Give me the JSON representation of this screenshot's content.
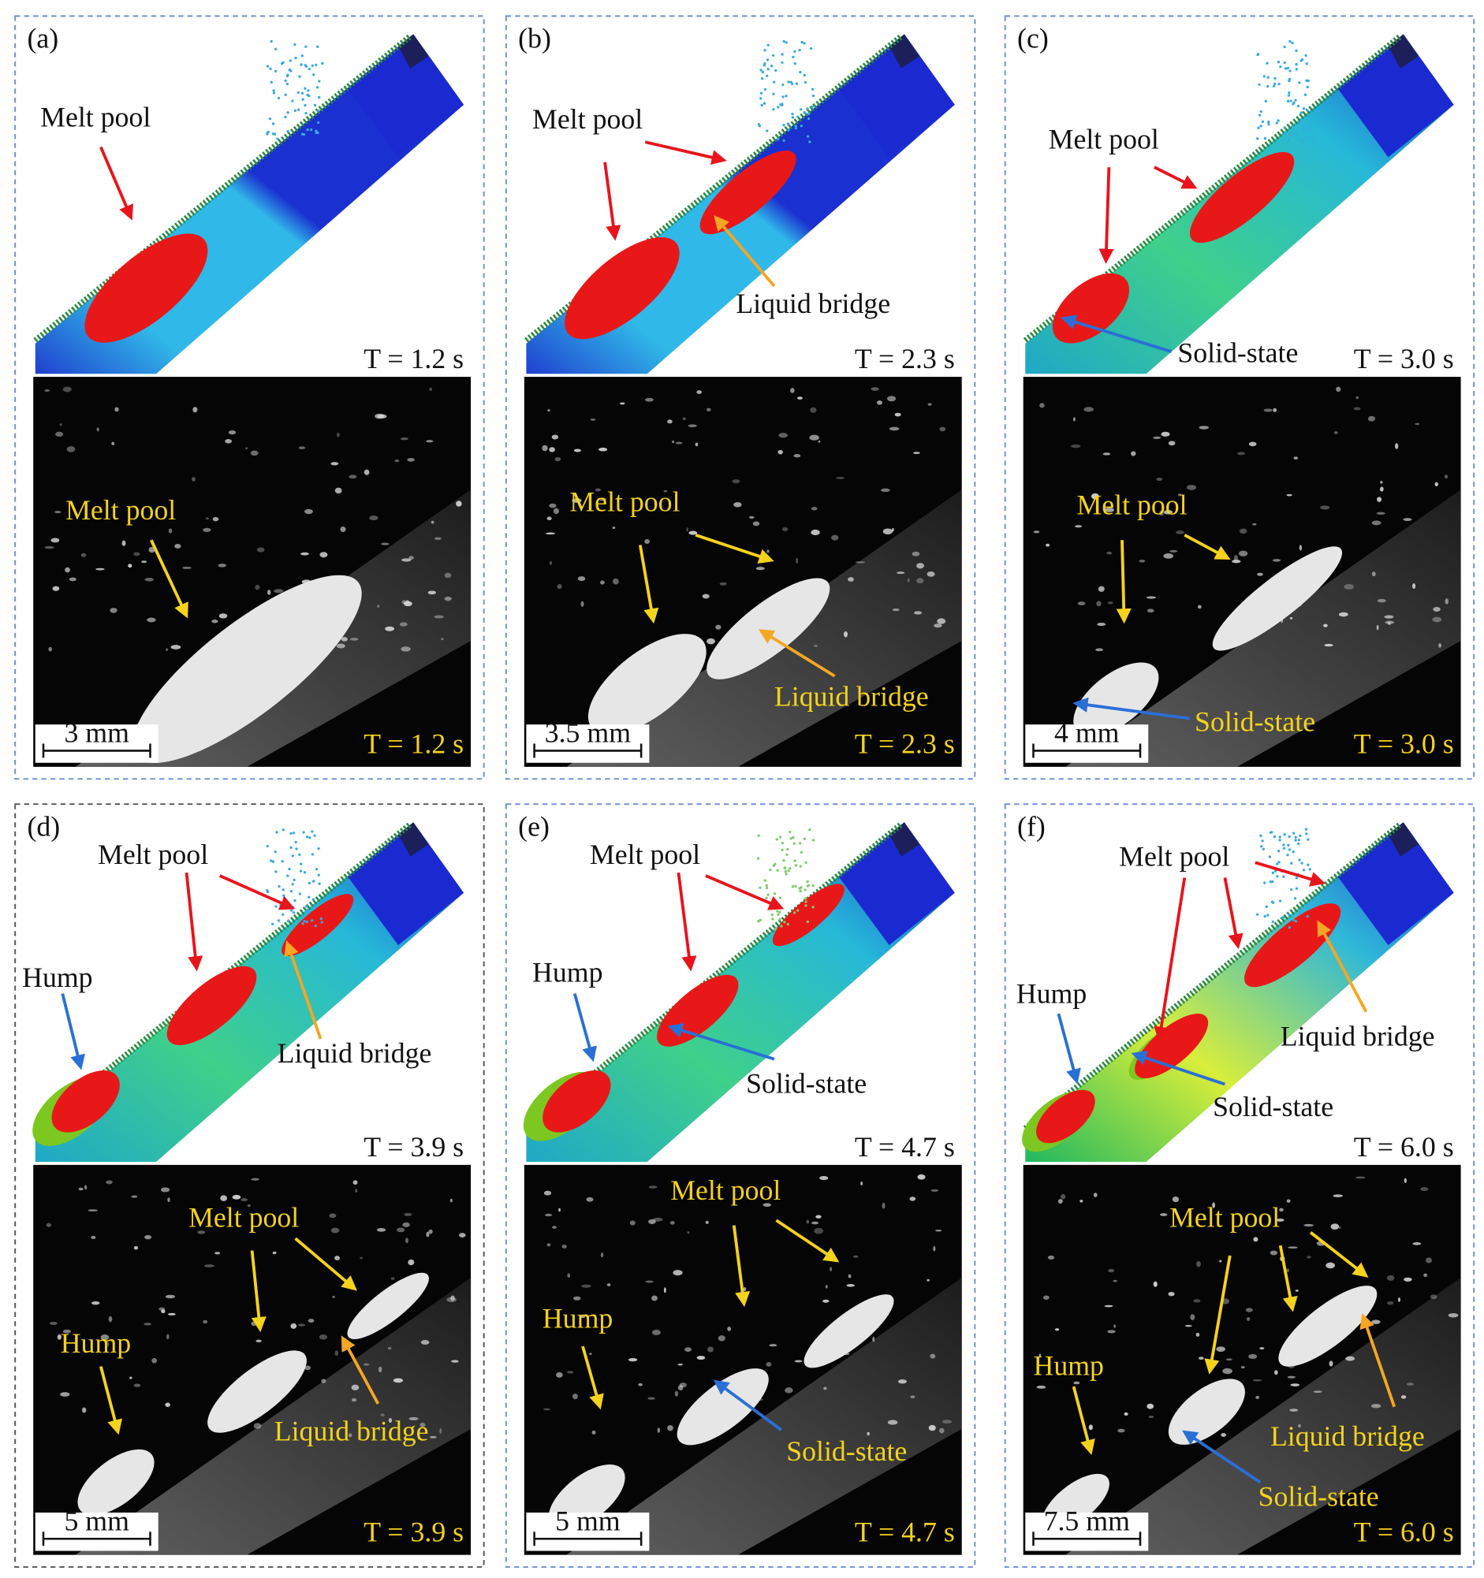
{
  "panels": [
    {
      "label": "(a)",
      "simulation": {
        "annotations": [
          "Melt pool"
        ],
        "time": "T = 1.2 s"
      },
      "photo": {
        "annotations": [
          "Melt pool"
        ],
        "time": "T = 1.2 s",
        "scale_bar": "3 mm"
      }
    },
    {
      "label": "(b)",
      "simulation": {
        "annotations": [
          "Melt pool",
          "Liquid bridge"
        ],
        "time": "T = 2.3 s"
      },
      "photo": {
        "annotations": [
          "Melt pool",
          "Liquid bridge"
        ],
        "time": "T = 2.3 s",
        "scale_bar": "3.5 mm"
      }
    },
    {
      "label": "(c)",
      "simulation": {
        "annotations": [
          "Melt pool",
          "Solid-state"
        ],
        "time": "T = 3.0 s"
      },
      "photo": {
        "annotations": [
          "Melt pool",
          "Solid-state"
        ],
        "time": "T = 3.0 s",
        "scale_bar": "4 mm"
      }
    },
    {
      "label": "(d)",
      "simulation": {
        "annotations": [
          "Melt pool",
          "Hump",
          "Liquid bridge"
        ],
        "time": "T = 3.9 s"
      },
      "photo": {
        "annotations": [
          "Melt pool",
          "Hump",
          "Liquid bridge"
        ],
        "time": "T = 3.9 s",
        "scale_bar": "5 mm"
      }
    },
    {
      "label": "(e)",
      "simulation": {
        "annotations": [
          "Melt pool",
          "Hump",
          "Solid-state"
        ],
        "time": "T = 4.7 s"
      },
      "photo": {
        "annotations": [
          "Melt pool",
          "Hump",
          "Solid-state"
        ],
        "time": "T = 4.7 s",
        "scale_bar": "5 mm"
      }
    },
    {
      "label": "(f)",
      "simulation": {
        "annotations": [
          "Melt pool",
          "Hump",
          "Liquid bridge",
          "Solid-state"
        ],
        "time": "T = 6.0 s"
      },
      "photo": {
        "annotations": [
          "Melt pool",
          "Hump",
          "Liquid bridge",
          "Solid-state"
        ],
        "time": "T = 6.0 s",
        "scale_bar": "7.5 mm"
      }
    }
  ]
}
